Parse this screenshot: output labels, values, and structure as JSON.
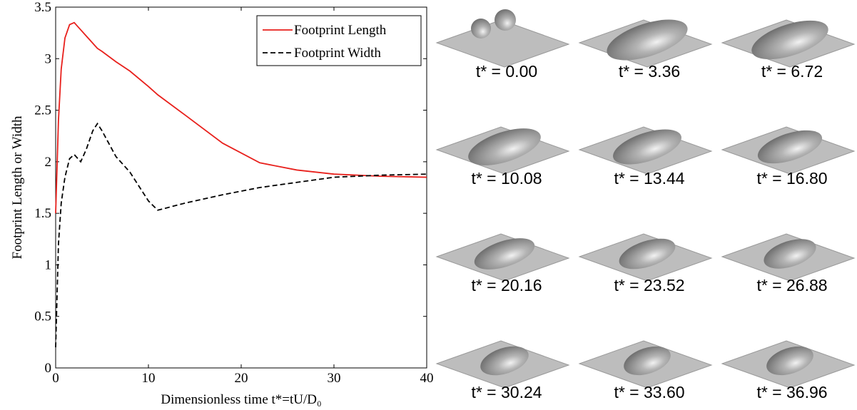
{
  "chart_data": {
    "type": "line",
    "xlabel": "Dimensionless time t*=tU/D₀",
    "ylabel": "Footprint Length or Width",
    "x": [
      0,
      0.3,
      0.6,
      1,
      1.5,
      2,
      2.7,
      3.3,
      4,
      4.5,
      5,
      6.5,
      8,
      10,
      11,
      14,
      18,
      22,
      26,
      30,
      35,
      40
    ],
    "series": [
      {
        "name": "Footprint Length",
        "color": "#e8201c",
        "dash": false,
        "values": [
          1.5,
          2.4,
          2.9,
          3.2,
          3.33,
          3.35,
          3.28,
          3.22,
          3.15,
          3.1,
          3.07,
          2.97,
          2.88,
          2.73,
          2.65,
          2.45,
          2.18,
          1.99,
          1.92,
          1.88,
          1.86,
          1.85
        ]
      },
      {
        "name": "Footprint Width",
        "color": "#000000",
        "dash": true,
        "values": [
          0.2,
          1.2,
          1.6,
          1.85,
          2.03,
          2.07,
          2.0,
          2.12,
          2.3,
          2.37,
          2.3,
          2.05,
          1.9,
          1.62,
          1.53,
          1.6,
          1.68,
          1.75,
          1.8,
          1.85,
          1.87,
          1.88
        ]
      }
    ],
    "xlim": [
      0,
      40
    ],
    "xticks": [
      0,
      10,
      20,
      30,
      40
    ],
    "ylim": [
      0,
      3.5
    ],
    "yticks": [
      0,
      0.5,
      1,
      1.5,
      2,
      2.5,
      3,
      3.5
    ],
    "legend": "upper-right"
  },
  "panels": [
    "t* = 0.00",
    "t* = 3.36",
    "t* = 6.72",
    "t* = 10.08",
    "t* = 13.44",
    "t* = 16.80",
    "t* = 20.16",
    "t* = 23.52",
    "t* = 26.88",
    "t* = 30.24",
    "t* = 33.60",
    "t* = 36.96"
  ]
}
